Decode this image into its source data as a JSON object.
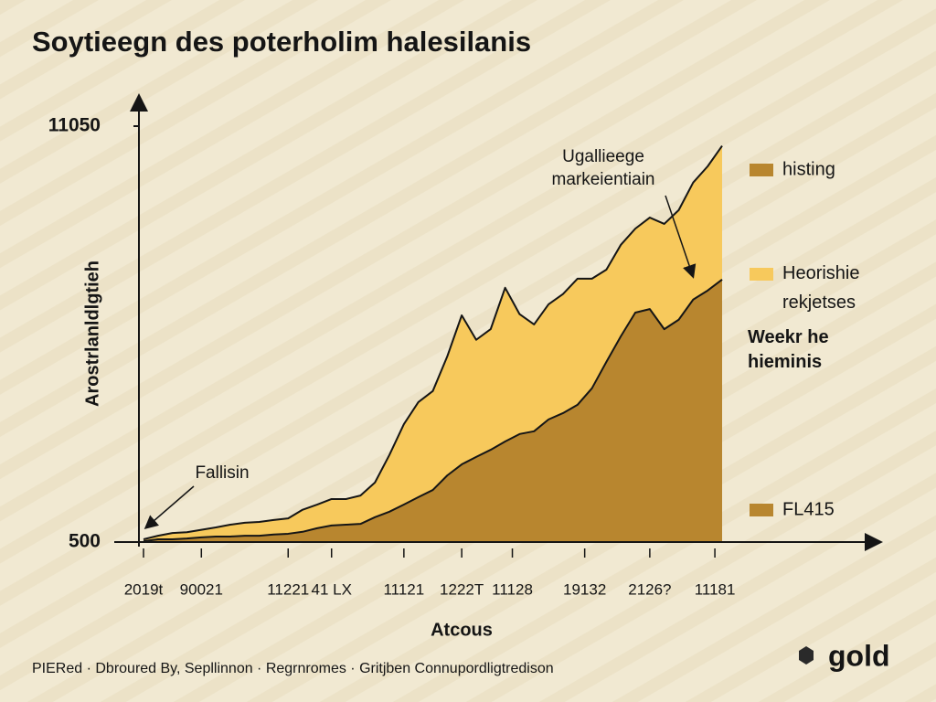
{
  "chart_data": {
    "type": "area",
    "title": "Soytieegn des poterholim halesilanis",
    "y_label": "Arostrlanldlgtieh",
    "x_label": "Atcous",
    "x": [
      0,
      1,
      2,
      3,
      4,
      5,
      6,
      7,
      8,
      9,
      10,
      11,
      12,
      13,
      14,
      15,
      16,
      17,
      18,
      19,
      20,
      21,
      22,
      23,
      24,
      25,
      26,
      27,
      28,
      29,
      30,
      31,
      32,
      33,
      34,
      35,
      36,
      37,
      38,
      39,
      40
    ],
    "xlim": [
      0,
      40
    ],
    "xticks": [
      {
        "value": 0,
        "label": "2019t"
      },
      {
        "value": 4,
        "label": "90021"
      },
      {
        "value": 10,
        "label": "11221"
      },
      {
        "value": 13,
        "label": "41 LX"
      },
      {
        "value": 18,
        "label": "11121"
      },
      {
        "value": 22,
        "label": "1222T"
      },
      {
        "value": 25.5,
        "label": "11128"
      },
      {
        "value": 30.5,
        "label": "19132"
      },
      {
        "value": 35,
        "label": "2126?"
      },
      {
        "value": 39.5,
        "label": "11181"
      }
    ],
    "ylim": [
      500,
      11050
    ],
    "yticks": [
      500,
      11050
    ],
    "stacked": true,
    "series": [
      {
        "name": "histing",
        "color": "#b8862f",
        "values": [
          520,
          570,
          570,
          590,
          620,
          640,
          640,
          660,
          660,
          690,
          710,
          760,
          850,
          920,
          940,
          960,
          1130,
          1270,
          1450,
          1640,
          1820,
          2190,
          2470,
          2660,
          2840,
          3050,
          3240,
          3310,
          3610,
          3770,
          3980,
          4400,
          5070,
          5720,
          6320,
          6410,
          5900,
          6140,
          6650,
          6880,
          7160
        ]
      },
      {
        "name": "Heorishie rekjetses",
        "color": "#f7c95c",
        "values": [
          50,
          90,
          160,
          160,
          190,
          230,
          300,
          330,
          350,
          370,
          390,
          560,
          600,
          670,
          650,
          720,
          880,
          1440,
          2040,
          2410,
          2510,
          3020,
          3780,
          2970,
          3060,
          3900,
          3040,
          2710,
          2920,
          3020,
          3200,
          2780,
          2340,
          2320,
          2130,
          2320,
          2670,
          2780,
          2970,
          3150,
          3390
        ]
      }
    ],
    "legend_notes": [
      {
        "text": "Weekr he hieminis"
      },
      {
        "text": "FL415",
        "color": "#b8862f"
      }
    ],
    "annotations": [
      {
        "text": "Ugallieege markeientiain"
      },
      {
        "text": "Fallisin"
      }
    ],
    "footer": "PIERed · Dbroured By, Sepllinnon · Regrnromes · Gritjben Connupordligtredison",
    "logo": "gold"
  }
}
